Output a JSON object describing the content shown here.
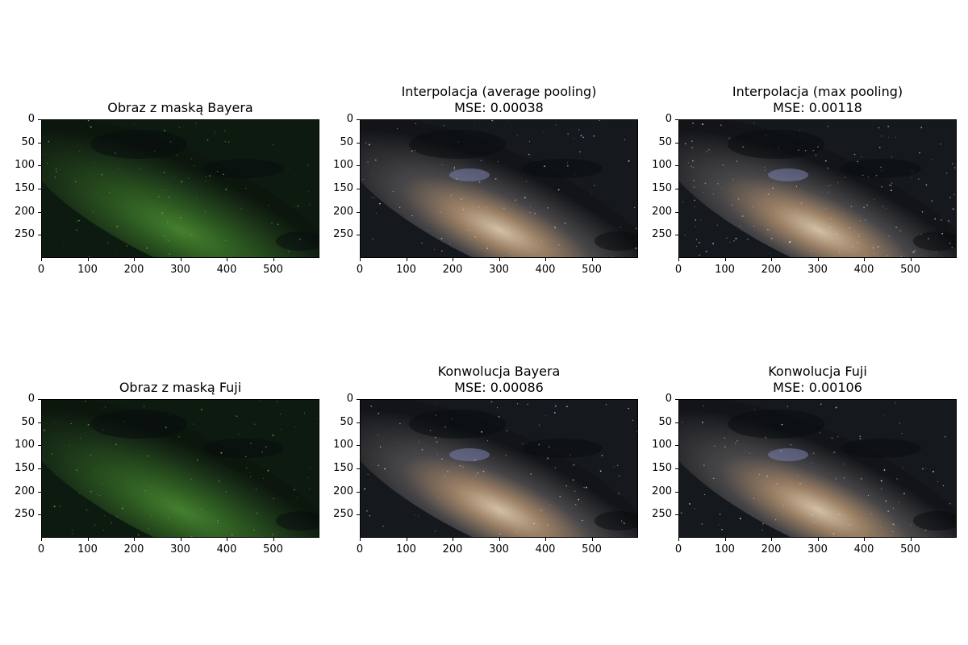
{
  "panels": [
    {
      "title": "Obraz z maską Bayera",
      "subtitle": "",
      "style": "green-bayer"
    },
    {
      "title": "Interpolacja (average pooling)",
      "subtitle": "MSE: 0.00038",
      "style": "color"
    },
    {
      "title": "Interpolacja (max pooling)",
      "subtitle": "MSE: 0.00118",
      "style": "color-noisy"
    },
    {
      "title": "Obraz z maską Fuji",
      "subtitle": "",
      "style": "green-fuji"
    },
    {
      "title": "Konwolucja Bayera",
      "subtitle": "MSE: 0.00086",
      "style": "color"
    },
    {
      "title": "Konwolucja Fuji",
      "subtitle": "MSE: 0.00106",
      "style": "color-soft"
    }
  ],
  "axes": {
    "y_ticks": [
      "0",
      "50",
      "100",
      "150",
      "200",
      "250"
    ],
    "x_ticks": [
      "0",
      "100",
      "200",
      "300",
      "400",
      "500"
    ],
    "xlim": [
      0,
      600
    ],
    "ylim": [
      300,
      0
    ]
  }
}
